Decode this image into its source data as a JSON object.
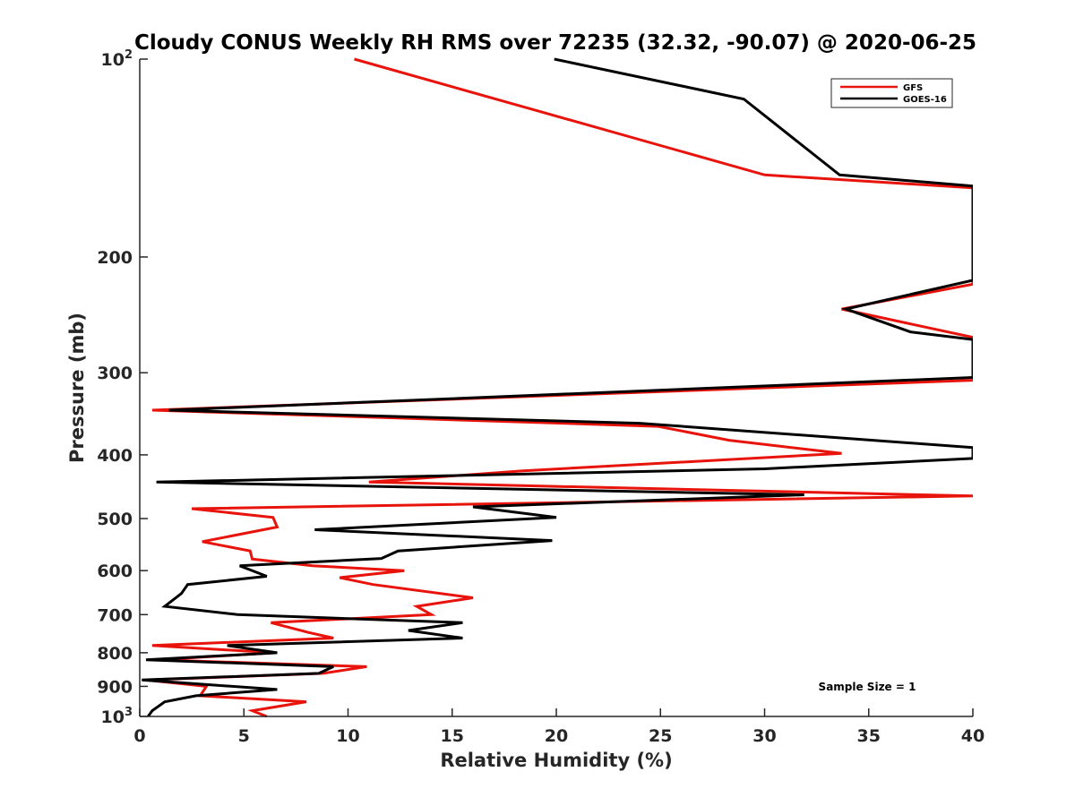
{
  "chart_data": {
    "type": "line",
    "title": "Cloudy CONUS Weekly RH RMS over 72235 (32.32, -90.07) @ 2020-06-25",
    "xlabel": "Relative Humidity (%)",
    "ylabel": "Pressure (mb)",
    "xlim": [
      0,
      40
    ],
    "ylim": [
      100,
      1000
    ],
    "y_scale": "log",
    "y_reversed": true,
    "x_ticks": [
      0,
      5,
      10,
      15,
      20,
      25,
      30,
      35,
      40
    ],
    "x_tick_labels": [
      "0",
      "5",
      "10",
      "15",
      "20",
      "25",
      "30",
      "35",
      "40"
    ],
    "y_ticks": [
      100,
      200,
      300,
      400,
      500,
      600,
      700,
      800,
      900,
      1000
    ],
    "y_tick_labels": [
      {
        "base": "10",
        "sup": "2"
      },
      {
        "base": "200",
        "sup": ""
      },
      {
        "base": "300",
        "sup": ""
      },
      {
        "base": "400",
        "sup": ""
      },
      {
        "base": "500",
        "sup": ""
      },
      {
        "base": "600",
        "sup": ""
      },
      {
        "base": "700",
        "sup": ""
      },
      {
        "base": "800",
        "sup": ""
      },
      {
        "base": "900",
        "sup": ""
      },
      {
        "base": "10",
        "sup": "3"
      }
    ],
    "legend_position": "top-right",
    "annotation": "Sample Size = 1",
    "series": [
      {
        "name": "GFS",
        "color": "#e8140c",
        "points": [
          [
            10.3,
            100
          ],
          [
            30.0,
            150
          ],
          [
            40.0,
            157
          ],
          [
            40.0,
            220
          ],
          [
            33.7,
            240
          ],
          [
            40.0,
            265
          ],
          [
            40.0,
            308
          ],
          [
            0.6,
            342
          ],
          [
            24.9,
            362
          ],
          [
            28.3,
            380
          ],
          [
            33.7,
            398
          ],
          [
            18.4,
            423
          ],
          [
            11.0,
            440
          ],
          [
            40.0,
            462
          ],
          [
            2.5,
            483
          ],
          [
            6.4,
            498
          ],
          [
            6.6,
            515
          ],
          [
            3.0,
            542
          ],
          [
            5.3,
            560
          ],
          [
            5.4,
            576
          ],
          [
            8.3,
            590
          ],
          [
            12.7,
            600
          ],
          [
            9.6,
            615
          ],
          [
            11.2,
            630
          ],
          [
            16.0,
            660
          ],
          [
            13.3,
            680
          ],
          [
            14.0,
            700
          ],
          [
            6.3,
            720
          ],
          [
            8.1,
            745
          ],
          [
            9.3,
            760
          ],
          [
            0.6,
            780
          ],
          [
            6.5,
            800
          ],
          [
            0.8,
            820
          ],
          [
            10.9,
            840
          ],
          [
            8.8,
            860
          ],
          [
            0.3,
            880
          ],
          [
            3.2,
            900
          ],
          [
            2.9,
            930
          ],
          [
            8.0,
            950
          ],
          [
            5.4,
            980
          ],
          [
            6.1,
            1000
          ]
        ]
      },
      {
        "name": "GOES-16",
        "color": "#000000",
        "points": [
          [
            19.9,
            100
          ],
          [
            29.0,
            115
          ],
          [
            33.6,
            150
          ],
          [
            40.0,
            156
          ],
          [
            40.0,
            217
          ],
          [
            33.9,
            240
          ],
          [
            37.0,
            260
          ],
          [
            40.0,
            267
          ],
          [
            40.0,
            305
          ],
          [
            1.4,
            342
          ],
          [
            24.0,
            358
          ],
          [
            40.0,
            390
          ],
          [
            40.0,
            405
          ],
          [
            30.0,
            420
          ],
          [
            0.8,
            440
          ],
          [
            31.9,
            460
          ],
          [
            16.0,
            480
          ],
          [
            20.0,
            498
          ],
          [
            8.4,
            520
          ],
          [
            19.8,
            540
          ],
          [
            12.4,
            560
          ],
          [
            11.6,
            575
          ],
          [
            4.8,
            590
          ],
          [
            6.1,
            612
          ],
          [
            2.3,
            630
          ],
          [
            2.0,
            650
          ],
          [
            1.2,
            680
          ],
          [
            4.7,
            700
          ],
          [
            15.5,
            720
          ],
          [
            12.9,
            740
          ],
          [
            15.5,
            760
          ],
          [
            4.2,
            780
          ],
          [
            6.6,
            800
          ],
          [
            0.3,
            820
          ],
          [
            9.3,
            840
          ],
          [
            8.6,
            860
          ],
          [
            0.1,
            880
          ],
          [
            6.6,
            910
          ],
          [
            2.7,
            930
          ],
          [
            1.2,
            950
          ],
          [
            0.6,
            980
          ],
          [
            0.4,
            1000
          ]
        ]
      }
    ]
  }
}
